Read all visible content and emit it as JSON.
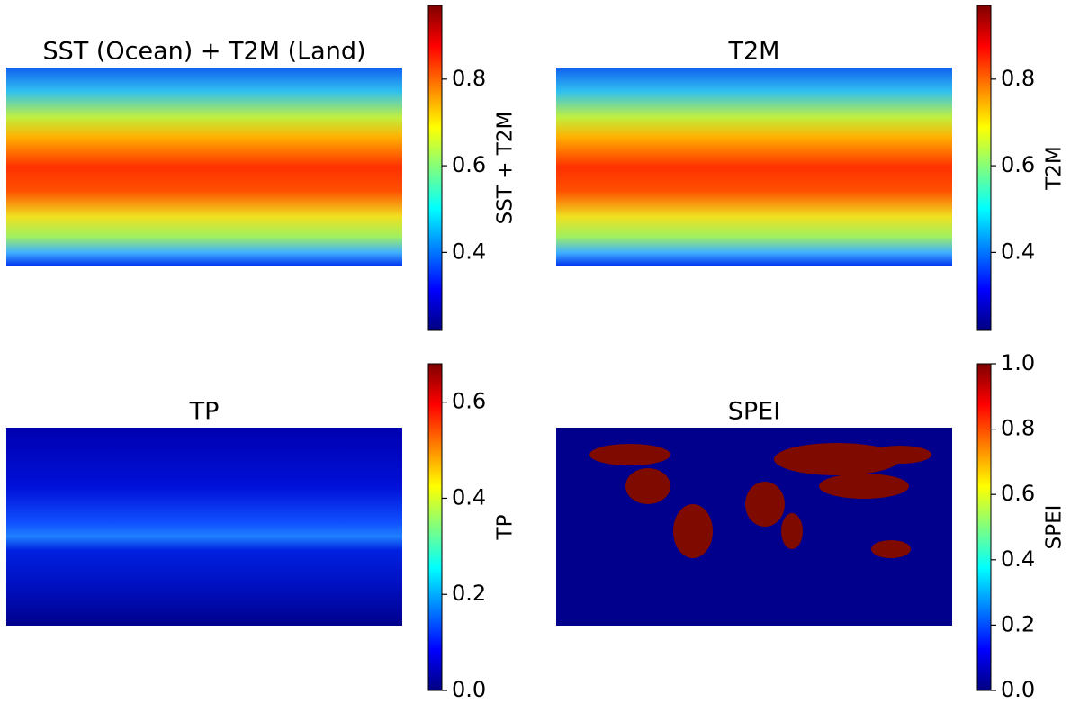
{
  "chart_data": [
    {
      "type": "heatmap",
      "title": "SST (Ocean) + T2M (Land)",
      "ylabel": "SST + T2M",
      "colormap": "jet",
      "ylim": [
        0.22,
        0.97
      ],
      "yticks": [
        0.4,
        0.6,
        0.8
      ]
    },
    {
      "type": "heatmap",
      "title": "T2M",
      "ylabel": "T2M",
      "colormap": "jet",
      "ylim": [
        0.22,
        0.97
      ],
      "yticks": [
        0.4,
        0.6,
        0.8
      ]
    },
    {
      "type": "heatmap",
      "title": "TP",
      "ylabel": "TP",
      "colormap": "jet",
      "ylim": [
        0,
        0.68
      ],
      "yticks": [
        {
          "value": 0,
          "label": "0.0"
        },
        0.2,
        0.4,
        0.6
      ]
    },
    {
      "type": "heatmap",
      "title": "SPEI",
      "ylabel": "SPEI",
      "colormap": "jet",
      "ylim": [
        0,
        1
      ],
      "yticks": [
        {
          "value": 0,
          "label": "0.0"
        },
        0.2,
        0.4,
        0.6,
        0.8,
        {
          "value": 1,
          "label": "1.0"
        }
      ]
    }
  ]
}
